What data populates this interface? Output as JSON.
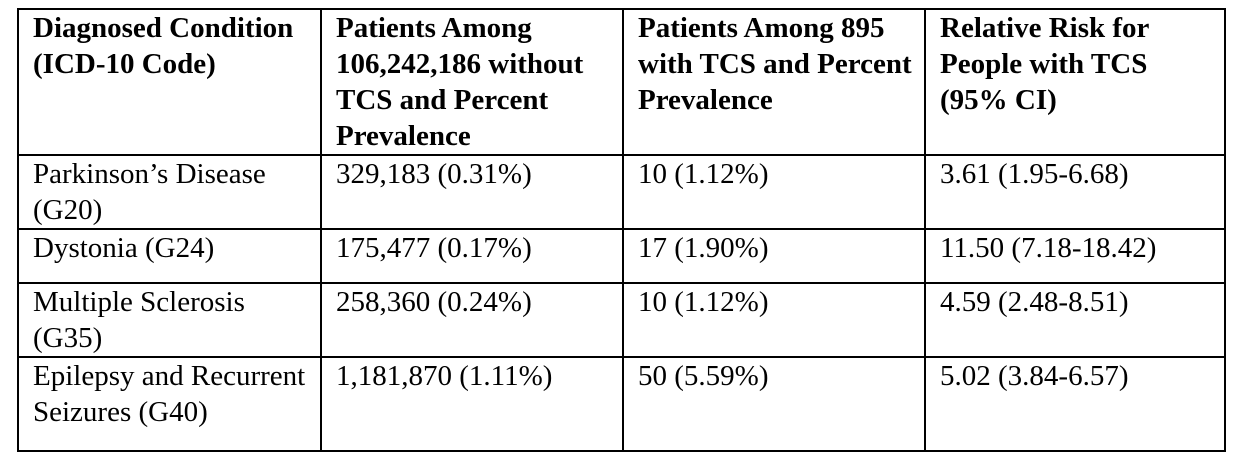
{
  "table": {
    "headers": [
      "Diagnosed Condition (ICD-10 Code)",
      "Patients Among 106,242,186 without TCS and Percent Prevalence",
      "Patients Among 895 with TCS and Percent Prevalence",
      "Relative Risk for People with TCS (95% CI)"
    ],
    "rows": [
      [
        "Parkinson’s Disease (G20)",
        "329,183 (0.31%)",
        "10 (1.12%)",
        "3.61 (1.95-6.68)"
      ],
      [
        "Dystonia (G24)",
        "175,477 (0.17%)",
        "17 (1.90%)",
        "11.50 (7.18-18.42)"
      ],
      [
        "Multiple Sclerosis (G35)",
        "258,360 (0.24%)",
        "10 (1.12%)",
        "4.59 (2.48-8.51)"
      ],
      [
        "Epilepsy and Recurrent Seizures (G40)",
        "1,181,870 (1.11%)",
        "50 (5.59%)",
        "5.02 (3.84-6.57)"
      ]
    ]
  }
}
